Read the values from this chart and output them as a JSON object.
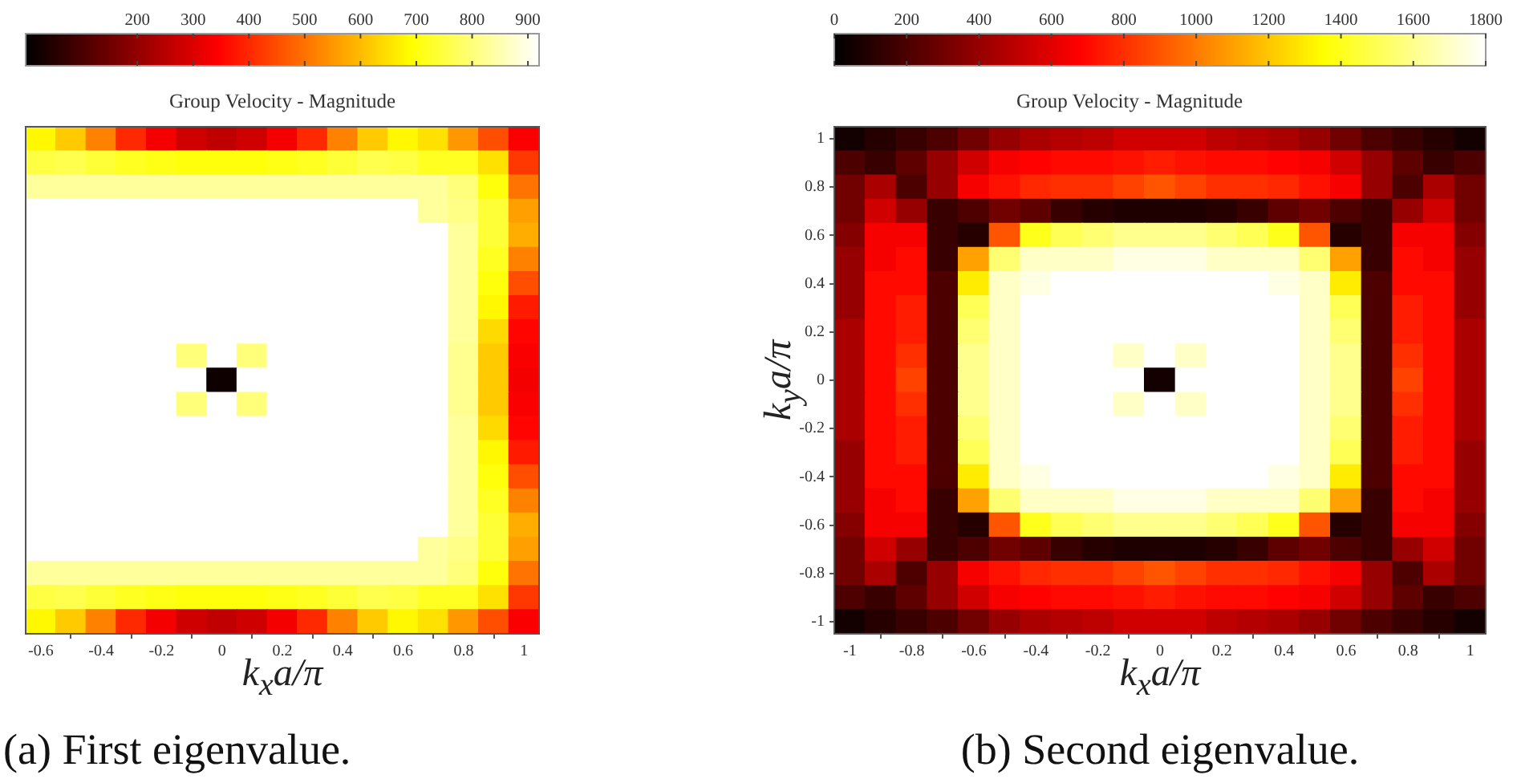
{
  "chart_data": [
    {
      "type": "heatmap",
      "title": "Group Velocity - Magnitude",
      "xlabel": "k$_{x}$a/π",
      "tick_labels": "x",
      "clim": [
        0,
        920
      ],
      "cticks": [
        200,
        300,
        400,
        500,
        600,
        700,
        800,
        900
      ],
      "annotations": [
        "(a) First eigenvalue."
      ],
      "categories": [
        "-0.6",
        null,
        "-0.4",
        null,
        "-0.2",
        null,
        "0",
        null,
        "0.2",
        null,
        "0.4",
        null,
        "0.6",
        null,
        "0.8",
        null,
        "1"
      ],
      "y_categories": [
        null,
        null,
        null,
        null,
        null,
        null,
        null,
        null,
        null,
        null,
        null,
        null,
        null,
        null,
        null,
        null,
        null,
        null,
        null,
        null,
        null
      ],
      "cells": [
        [
          680,
          620,
          520,
          400,
          330,
          280,
          260,
          280,
          330,
          400,
          520,
          620,
          680,
          650,
          550,
          450,
          340
        ],
        [
          750,
          760,
          740,
          720,
          710,
          700,
          700,
          700,
          710,
          720,
          740,
          760,
          750,
          720,
          720,
          650,
          420
        ],
        [
          830,
          830,
          830,
          830,
          830,
          830,
          830,
          830,
          830,
          830,
          830,
          830,
          830,
          830,
          800,
          700,
          500
        ],
        [
          920,
          920,
          920,
          920,
          920,
          920,
          920,
          920,
          920,
          920,
          920,
          920,
          920,
          830,
          810,
          740,
          560
        ],
        [
          920,
          920,
          920,
          920,
          920,
          920,
          920,
          920,
          920,
          920,
          920,
          920,
          920,
          920,
          830,
          740,
          580
        ],
        [
          920,
          920,
          920,
          920,
          920,
          920,
          920,
          920,
          920,
          920,
          920,
          920,
          920,
          920,
          830,
          720,
          520
        ],
        [
          920,
          920,
          920,
          920,
          920,
          920,
          920,
          920,
          920,
          920,
          920,
          920,
          920,
          920,
          830,
          700,
          450
        ],
        [
          920,
          920,
          920,
          920,
          920,
          920,
          920,
          920,
          920,
          920,
          920,
          920,
          920,
          920,
          830,
          680,
          380
        ],
        [
          920,
          920,
          920,
          920,
          920,
          920,
          920,
          920,
          920,
          920,
          920,
          920,
          920,
          920,
          830,
          640,
          350
        ],
        [
          920,
          920,
          920,
          920,
          920,
          800,
          920,
          800,
          920,
          920,
          920,
          920,
          920,
          920,
          820,
          620,
          340
        ],
        [
          920,
          920,
          920,
          920,
          920,
          920,
          20,
          920,
          920,
          920,
          920,
          920,
          920,
          920,
          820,
          620,
          330
        ],
        [
          920,
          920,
          920,
          920,
          920,
          800,
          920,
          800,
          920,
          920,
          920,
          920,
          920,
          920,
          820,
          620,
          340
        ],
        [
          920,
          920,
          920,
          920,
          920,
          920,
          920,
          920,
          920,
          920,
          920,
          920,
          920,
          920,
          830,
          640,
          350
        ],
        [
          920,
          920,
          920,
          920,
          920,
          920,
          920,
          920,
          920,
          920,
          920,
          920,
          920,
          920,
          830,
          680,
          380
        ],
        [
          920,
          920,
          920,
          920,
          920,
          920,
          920,
          920,
          920,
          920,
          920,
          920,
          920,
          920,
          830,
          700,
          450
        ],
        [
          920,
          920,
          920,
          920,
          920,
          920,
          920,
          920,
          920,
          920,
          920,
          920,
          920,
          920,
          830,
          720,
          520
        ],
        [
          920,
          920,
          920,
          920,
          920,
          920,
          920,
          920,
          920,
          920,
          920,
          920,
          920,
          920,
          830,
          740,
          580
        ],
        [
          920,
          920,
          920,
          920,
          920,
          920,
          920,
          920,
          920,
          920,
          920,
          920,
          920,
          830,
          810,
          740,
          560
        ],
        [
          830,
          830,
          830,
          830,
          830,
          830,
          830,
          830,
          830,
          830,
          830,
          830,
          830,
          830,
          800,
          700,
          500
        ],
        [
          750,
          760,
          740,
          720,
          710,
          700,
          700,
          700,
          710,
          720,
          740,
          760,
          750,
          720,
          720,
          650,
          420
        ],
        [
          680,
          620,
          520,
          400,
          330,
          280,
          260,
          280,
          330,
          400,
          520,
          620,
          680,
          650,
          550,
          450,
          340
        ]
      ]
    },
    {
      "type": "heatmap",
      "title": "Group Velocity - Magnitude",
      "xlabel": "k$_{x}$a/π",
      "ylabel": "k$_{y}$a/π",
      "clim": [
        0,
        1800
      ],
      "cticks": [
        0,
        200,
        400,
        600,
        800,
        1000,
        1200,
        1400,
        1600,
        1800
      ],
      "annotations": [
        "(b) Second eigenvalue."
      ],
      "categories": [
        "-1",
        null,
        "-0.8",
        null,
        "-0.6",
        null,
        "-0.4",
        null,
        "-0.2",
        null,
        "0",
        null,
        "0.2",
        null,
        "0.4",
        null,
        "0.6",
        null,
        "0.8",
        null,
        "1"
      ],
      "y_categories": [
        "1",
        null,
        "0.8",
        null,
        "0.6",
        null,
        "0.4",
        null,
        "0.2",
        null,
        "0",
        null,
        "-0.2",
        null,
        "-0.4",
        null,
        "-0.6",
        null,
        "-0.8",
        null,
        "-1"
      ],
      "cells": [
        [
          50,
          100,
          150,
          200,
          300,
          400,
          450,
          480,
          500,
          550,
          550,
          550,
          500,
          480,
          450,
          400,
          300,
          200,
          150,
          100,
          50
        ],
        [
          200,
          150,
          250,
          400,
          550,
          650,
          680,
          700,
          700,
          720,
          750,
          720,
          700,
          700,
          680,
          650,
          550,
          400,
          250,
          150,
          200
        ],
        [
          300,
          450,
          200,
          400,
          650,
          720,
          780,
          800,
          800,
          850,
          900,
          850,
          800,
          800,
          780,
          720,
          650,
          400,
          200,
          450,
          300
        ],
        [
          300,
          550,
          400,
          150,
          200,
          300,
          250,
          150,
          100,
          80,
          80,
          80,
          100,
          150,
          250,
          300,
          200,
          150,
          400,
          550,
          300
        ],
        [
          350,
          650,
          650,
          150,
          100,
          900,
          1400,
          1500,
          1550,
          1600,
          1600,
          1600,
          1550,
          1500,
          1400,
          900,
          100,
          150,
          650,
          650,
          350
        ],
        [
          400,
          650,
          700,
          150,
          1100,
          1550,
          1700,
          1700,
          1700,
          1750,
          1750,
          1750,
          1700,
          1700,
          1700,
          1550,
          1100,
          150,
          700,
          650,
          400
        ],
        [
          400,
          700,
          700,
          200,
          1300,
          1700,
          1750,
          1800,
          1800,
          1800,
          1800,
          1800,
          1800,
          1800,
          1750,
          1700,
          1300,
          200,
          700,
          700,
          400
        ],
        [
          400,
          700,
          750,
          200,
          1500,
          1700,
          1800,
          1800,
          1800,
          1800,
          1800,
          1800,
          1800,
          1800,
          1800,
          1700,
          1500,
          200,
          750,
          700,
          400
        ],
        [
          450,
          700,
          750,
          200,
          1550,
          1700,
          1800,
          1800,
          1800,
          1800,
          1800,
          1800,
          1800,
          1800,
          1800,
          1700,
          1550,
          200,
          750,
          700,
          450
        ],
        [
          450,
          700,
          800,
          200,
          1600,
          1700,
          1800,
          1800,
          1800,
          1700,
          1800,
          1700,
          1800,
          1800,
          1800,
          1700,
          1600,
          200,
          800,
          700,
          450
        ],
        [
          450,
          700,
          850,
          200,
          1600,
          1700,
          1800,
          1800,
          1800,
          1800,
          50,
          1800,
          1800,
          1800,
          1800,
          1700,
          1600,
          200,
          850,
          700,
          450
        ],
        [
          450,
          700,
          800,
          200,
          1600,
          1700,
          1800,
          1800,
          1800,
          1700,
          1800,
          1700,
          1800,
          1800,
          1800,
          1700,
          1600,
          200,
          800,
          700,
          450
        ],
        [
          450,
          700,
          750,
          200,
          1550,
          1700,
          1800,
          1800,
          1800,
          1800,
          1800,
          1800,
          1800,
          1800,
          1800,
          1700,
          1550,
          200,
          750,
          700,
          450
        ],
        [
          400,
          700,
          750,
          200,
          1500,
          1700,
          1800,
          1800,
          1800,
          1800,
          1800,
          1800,
          1800,
          1800,
          1800,
          1700,
          1500,
          200,
          750,
          700,
          400
        ],
        [
          400,
          700,
          700,
          200,
          1300,
          1700,
          1750,
          1800,
          1800,
          1800,
          1800,
          1800,
          1800,
          1800,
          1750,
          1700,
          1300,
          200,
          700,
          700,
          400
        ],
        [
          400,
          650,
          700,
          150,
          1100,
          1550,
          1700,
          1700,
          1700,
          1750,
          1750,
          1750,
          1700,
          1700,
          1700,
          1550,
          1100,
          150,
          700,
          650,
          400
        ],
        [
          350,
          650,
          650,
          150,
          100,
          900,
          1400,
          1500,
          1550,
          1600,
          1600,
          1600,
          1550,
          1500,
          1400,
          900,
          100,
          150,
          650,
          650,
          350
        ],
        [
          300,
          550,
          400,
          150,
          200,
          300,
          250,
          150,
          100,
          80,
          80,
          80,
          100,
          150,
          250,
          300,
          200,
          150,
          400,
          550,
          300
        ],
        [
          300,
          450,
          200,
          400,
          650,
          720,
          780,
          800,
          800,
          850,
          900,
          850,
          800,
          800,
          780,
          720,
          650,
          400,
          200,
          450,
          300
        ],
        [
          200,
          150,
          250,
          400,
          550,
          650,
          680,
          700,
          700,
          720,
          750,
          720,
          700,
          700,
          680,
          650,
          550,
          400,
          250,
          150,
          200
        ],
        [
          50,
          100,
          150,
          200,
          300,
          400,
          450,
          480,
          500,
          550,
          550,
          550,
          500,
          480,
          450,
          400,
          300,
          200,
          150,
          100,
          50
        ]
      ]
    }
  ]
}
